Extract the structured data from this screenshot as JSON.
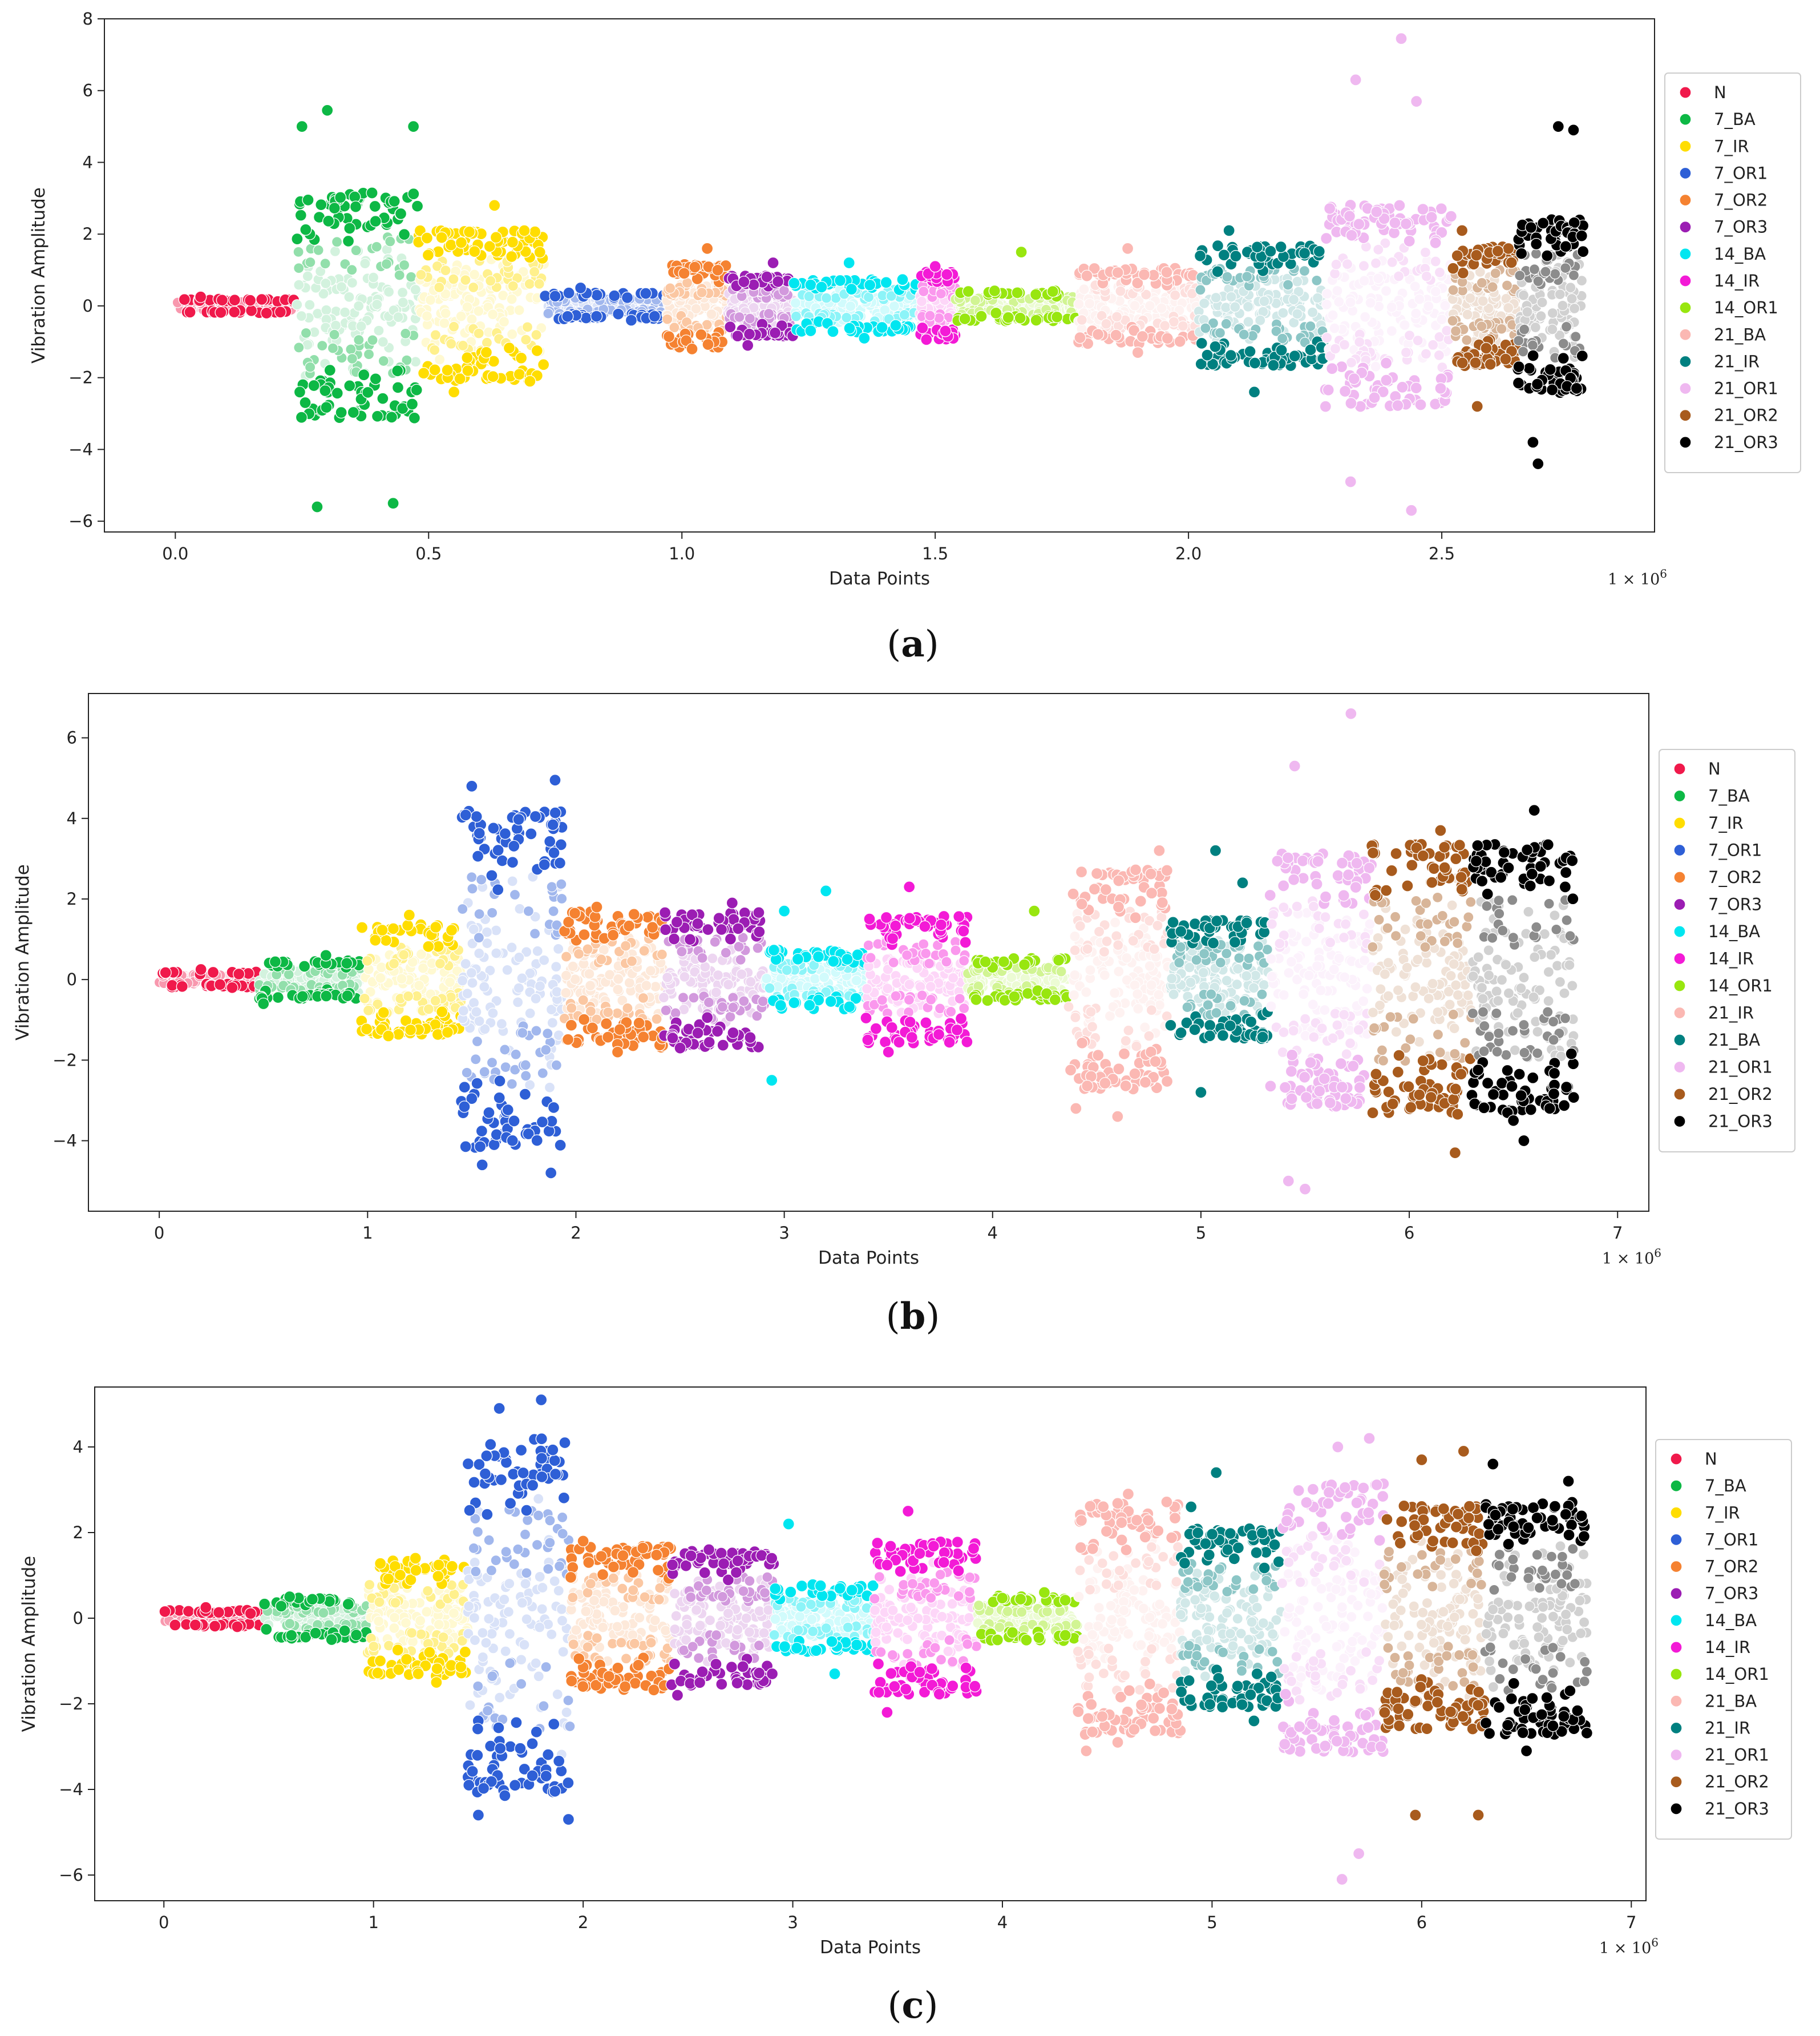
{
  "chart_data": [
    {
      "type": "scatter",
      "caption": "(a)",
      "caption_open": "(",
      "caption_letter": "a",
      "caption_close": ")",
      "xlabel": "Data Points",
      "ylabel": "Vibration Amplitude",
      "x_multiplier": "1 × 10",
      "x_multiplier_exp": "6",
      "x_scale": 1000000,
      "xlim": [
        -0.14,
        2.92
      ],
      "ylim": [
        -6.3,
        8.0
      ],
      "xticks": [
        0.0,
        0.5,
        1.0,
        1.5,
        2.0,
        2.5
      ],
      "xtick_labels": [
        "0.0",
        "0.5",
        "1.0",
        "1.5",
        "2.0",
        "2.5"
      ],
      "yticks": [
        -6,
        -4,
        -2,
        0,
        2,
        4,
        6,
        8
      ],
      "ytick_labels": [
        "−6",
        "−4",
        "−2",
        "0",
        "2",
        "4",
        "6",
        "8"
      ],
      "legend_position": "right",
      "series": [
        {
          "name": "N",
          "color": "#f0194b",
          "x_range": [
            0.0,
            0.24
          ],
          "spread": 0.18,
          "extremes": [
            [
              0.05,
              0.25
            ],
            [
              0.18,
              -0.2
            ]
          ]
        },
        {
          "name": "7_BA",
          "color": "#0db845",
          "x_range": [
            0.24,
            0.48
          ],
          "spread": 3.0,
          "extremes": [
            [
              0.3,
              5.45
            ],
            [
              0.28,
              -5.6
            ],
            [
              0.43,
              -5.5
            ],
            [
              0.25,
              5.0
            ],
            [
              0.47,
              5.0
            ]
          ]
        },
        {
          "name": "7_IR",
          "color": "#ffdd00",
          "x_range": [
            0.48,
            0.73
          ],
          "spread": 2.0,
          "extremes": [
            [
              0.63,
              2.8
            ],
            [
              0.55,
              -2.4
            ],
            [
              0.7,
              -2.1
            ]
          ]
        },
        {
          "name": "7_OR1",
          "color": "#2e5fd6",
          "x_range": [
            0.73,
            0.97
          ],
          "spread": 0.35,
          "extremes": [
            [
              0.8,
              0.5
            ],
            [
              0.9,
              -0.4
            ]
          ]
        },
        {
          "name": "7_OR2",
          "color": "#f58231",
          "x_range": [
            0.97,
            1.09
          ],
          "spread": 1.1,
          "extremes": [
            [
              1.05,
              1.6
            ],
            [
              1.02,
              -1.2
            ]
          ]
        },
        {
          "name": "7_OR3",
          "color": "#9b1db3",
          "x_range": [
            1.09,
            1.22
          ],
          "spread": 0.8,
          "extremes": [
            [
              1.18,
              1.2
            ],
            [
              1.13,
              -1.1
            ]
          ]
        },
        {
          "name": "14_BA",
          "color": "#00e6f0",
          "x_range": [
            1.22,
            1.47
          ],
          "spread": 0.7,
          "extremes": [
            [
              1.33,
              1.2
            ],
            [
              1.36,
              -0.9
            ]
          ]
        },
        {
          "name": "14_IR",
          "color": "#f31ad6",
          "x_range": [
            1.47,
            1.54
          ],
          "spread": 0.9,
          "extremes": [
            [
              1.5,
              1.1
            ],
            [
              1.52,
              -0.7
            ]
          ]
        },
        {
          "name": "14_OR1",
          "color": "#98e60f",
          "x_range": [
            1.54,
            1.78
          ],
          "spread": 0.4,
          "extremes": [
            [
              1.67,
              1.5
            ],
            [
              1.62,
              -0.2
            ]
          ]
        },
        {
          "name": "21_BA",
          "color": "#fbb8b3",
          "x_range": [
            1.78,
            2.02
          ],
          "spread": 1.0,
          "extremes": [
            [
              1.88,
              1.6
            ],
            [
              1.9,
              -1.3
            ]
          ]
        },
        {
          "name": "21_IR",
          "color": "#008080",
          "x_range": [
            2.02,
            2.27
          ],
          "spread": 1.6,
          "extremes": [
            [
              2.08,
              2.1
            ],
            [
              2.13,
              -2.4
            ]
          ]
        },
        {
          "name": "21_OR1",
          "color": "#efb8f0",
          "x_range": [
            2.27,
            2.52
          ],
          "spread": 2.7,
          "extremes": [
            [
              2.42,
              7.45
            ],
            [
              2.33,
              6.3
            ],
            [
              2.44,
              -5.7
            ],
            [
              2.32,
              -4.9
            ],
            [
              2.45,
              5.7
            ]
          ]
        },
        {
          "name": "21_OR2",
          "color": "#a85b1d",
          "x_range": [
            2.52,
            2.65
          ],
          "spread": 1.6,
          "extremes": [
            [
              2.54,
              2.1
            ],
            [
              2.57,
              -2.8
            ]
          ]
        },
        {
          "name": "21_OR3",
          "color": "#000000",
          "x_range": [
            2.65,
            2.78
          ],
          "spread": 2.3,
          "extremes": [
            [
              2.73,
              5.0
            ],
            [
              2.76,
              4.9
            ],
            [
              2.69,
              -4.4
            ],
            [
              2.68,
              -3.8
            ]
          ]
        }
      ]
    },
    {
      "type": "scatter",
      "caption": "(b)",
      "caption_open": "(",
      "caption_letter": "b",
      "caption_close": ")",
      "xlabel": "Data Points",
      "ylabel": "Vibration Amplitude",
      "x_multiplier": "1 × 10",
      "x_multiplier_exp": "6",
      "x_scale": 1000000,
      "xlim": [
        -0.34,
        7.15
      ],
      "ylim": [
        -5.75,
        7.1
      ],
      "xticks": [
        0,
        1,
        2,
        3,
        4,
        5,
        6,
        7
      ],
      "xtick_labels": [
        "0",
        "1",
        "2",
        "3",
        "4",
        "5",
        "6",
        "7"
      ],
      "yticks": [
        -4,
        -2,
        0,
        2,
        4,
        6
      ],
      "ytick_labels": [
        "−4",
        "−2",
        "0",
        "2",
        "4",
        "6"
      ],
      "legend_position": "right",
      "series": [
        {
          "name": "N",
          "color": "#f0194b",
          "x_range": [
            0.0,
            0.48
          ],
          "spread": 0.18,
          "extremes": [
            [
              0.2,
              0.25
            ],
            [
              0.35,
              -0.2
            ]
          ]
        },
        {
          "name": "7_BA",
          "color": "#0db845",
          "x_range": [
            0.48,
            0.97
          ],
          "spread": 0.45,
          "extremes": [
            [
              0.5,
              -0.6
            ],
            [
              0.8,
              0.6
            ]
          ]
        },
        {
          "name": "7_IR",
          "color": "#ffdd00",
          "x_range": [
            0.97,
            1.45
          ],
          "spread": 1.3,
          "extremes": [
            [
              1.2,
              1.6
            ],
            [
              1.1,
              -1.4
            ]
          ]
        },
        {
          "name": "7_OR1",
          "color": "#2e5fd6",
          "x_range": [
            1.45,
            1.94
          ],
          "spread": 4.0,
          "extremes": [
            [
              1.9,
              4.95
            ],
            [
              1.88,
              -4.8
            ],
            [
              1.5,
              4.8
            ],
            [
              1.55,
              -4.6
            ]
          ]
        },
        {
          "name": "7_OR2",
          "color": "#f58231",
          "x_range": [
            1.94,
            2.42
          ],
          "spread": 1.6,
          "extremes": [
            [
              2.1,
              1.8
            ],
            [
              2.2,
              -1.8
            ]
          ]
        },
        {
          "name": "7_OR3",
          "color": "#9b1db3",
          "x_range": [
            2.42,
            2.91
          ],
          "spread": 1.6,
          "extremes": [
            [
              2.75,
              1.9
            ],
            [
              2.5,
              -1.7
            ]
          ]
        },
        {
          "name": "14_BA",
          "color": "#00e6f0",
          "x_range": [
            2.91,
            3.39
          ],
          "spread": 0.7,
          "extremes": [
            [
              3.2,
              2.2
            ],
            [
              2.94,
              -2.5
            ],
            [
              3.0,
              1.7
            ]
          ]
        },
        {
          "name": "14_IR",
          "color": "#f31ad6",
          "x_range": [
            3.39,
            3.88
          ],
          "spread": 1.5,
          "extremes": [
            [
              3.6,
              2.3
            ],
            [
              3.5,
              -1.8
            ]
          ]
        },
        {
          "name": "14_OR1",
          "color": "#98e60f",
          "x_range": [
            3.88,
            4.36
          ],
          "spread": 0.5,
          "extremes": [
            [
              4.2,
              1.7
            ],
            [
              4.3,
              -0.5
            ]
          ]
        },
        {
          "name": "21_IR",
          "color": "#fbb8b3",
          "x_range": [
            4.36,
            4.85
          ],
          "spread": 2.6,
          "extremes": [
            [
              4.4,
              -3.2
            ],
            [
              4.6,
              -3.4
            ],
            [
              4.8,
              3.2
            ]
          ]
        },
        {
          "name": "21_BA",
          "color": "#008080",
          "x_range": [
            4.85,
            5.33
          ],
          "spread": 1.4,
          "extremes": [
            [
              5.07,
              3.2
            ],
            [
              5.0,
              -2.8
            ],
            [
              5.2,
              2.4
            ]
          ]
        },
        {
          "name": "21_OR1",
          "color": "#efb8f0",
          "x_range": [
            5.33,
            5.82
          ],
          "spread": 3.0,
          "extremes": [
            [
              5.72,
              6.6
            ],
            [
              5.45,
              5.3
            ],
            [
              5.5,
              -5.2
            ],
            [
              5.42,
              -5.0
            ]
          ]
        },
        {
          "name": "21_OR2",
          "color": "#a85b1d",
          "x_range": [
            5.82,
            6.3
          ],
          "spread": 3.2,
          "extremes": [
            [
              6.15,
              3.7
            ],
            [
              6.22,
              -4.3
            ]
          ]
        },
        {
          "name": "21_OR3",
          "color": "#000000",
          "x_range": [
            6.3,
            6.79
          ],
          "spread": 3.2,
          "extremes": [
            [
              6.6,
              4.2
            ],
            [
              6.55,
              -4.0
            ],
            [
              6.5,
              -3.5
            ]
          ]
        }
      ]
    },
    {
      "type": "scatter",
      "caption": "(c)",
      "caption_open": "(",
      "caption_letter": "c",
      "caption_close": ")",
      "xlabel": "Data Points",
      "ylabel": "Vibration Amplitude",
      "x_multiplier": "1 × 10",
      "x_multiplier_exp": "6",
      "x_scale": 1000000,
      "xlim": [
        -0.33,
        7.07
      ],
      "ylim": [
        -6.6,
        5.4
      ],
      "xticks": [
        0,
        1,
        2,
        3,
        4,
        5,
        6,
        7
      ],
      "xtick_labels": [
        "0",
        "1",
        "2",
        "3",
        "4",
        "5",
        "6",
        "7"
      ],
      "yticks": [
        -6,
        -4,
        -2,
        0,
        2,
        4
      ],
      "ytick_labels": [
        "−6",
        "−4",
        "−2",
        "0",
        "2",
        "4"
      ],
      "legend_position": "right",
      "series": [
        {
          "name": "N",
          "color": "#f0194b",
          "x_range": [
            0.0,
            0.48
          ],
          "spread": 0.18,
          "extremes": [
            [
              0.2,
              0.25
            ],
            [
              0.35,
              -0.2
            ]
          ]
        },
        {
          "name": "7_BA",
          "color": "#0db845",
          "x_range": [
            0.48,
            0.97
          ],
          "spread": 0.45,
          "extremes": [
            [
              0.6,
              0.5
            ],
            [
              0.8,
              -0.5
            ]
          ]
        },
        {
          "name": "7_IR",
          "color": "#ffdd00",
          "x_range": [
            0.97,
            1.45
          ],
          "spread": 1.3,
          "extremes": [
            [
              1.2,
              1.4
            ],
            [
              1.3,
              -1.5
            ]
          ]
        },
        {
          "name": "7_OR1",
          "color": "#2e5fd6",
          "x_range": [
            1.45,
            1.94
          ],
          "spread": 4.0,
          "extremes": [
            [
              1.8,
              5.1
            ],
            [
              1.93,
              -4.7
            ],
            [
              1.5,
              -4.6
            ],
            [
              1.6,
              4.9
            ]
          ]
        },
        {
          "name": "7_OR2",
          "color": "#f58231",
          "x_range": [
            1.94,
            2.42
          ],
          "spread": 1.6,
          "extremes": [
            [
              2.0,
              1.8
            ],
            [
              2.2,
              -1.6
            ]
          ]
        },
        {
          "name": "7_OR3",
          "color": "#9b1db3",
          "x_range": [
            2.42,
            2.91
          ],
          "spread": 1.5,
          "extremes": [
            [
              2.6,
              1.6
            ],
            [
              2.45,
              -1.8
            ]
          ]
        },
        {
          "name": "14_BA",
          "color": "#00e6f0",
          "x_range": [
            2.91,
            3.39
          ],
          "spread": 0.75,
          "extremes": [
            [
              2.98,
              2.2
            ],
            [
              3.2,
              -1.3
            ]
          ]
        },
        {
          "name": "14_IR",
          "color": "#f31ad6",
          "x_range": [
            3.39,
            3.88
          ],
          "spread": 1.7,
          "extremes": [
            [
              3.55,
              2.5
            ],
            [
              3.45,
              -2.2
            ]
          ]
        },
        {
          "name": "14_OR1",
          "color": "#98e60f",
          "x_range": [
            3.88,
            4.36
          ],
          "spread": 0.5,
          "extremes": [
            [
              4.2,
              0.6
            ],
            [
              4.3,
              -0.4
            ]
          ]
        },
        {
          "name": "21_BA",
          "color": "#fbb8b3",
          "x_range": [
            4.36,
            4.85
          ],
          "spread": 2.6,
          "extremes": [
            [
              4.4,
              -3.1
            ],
            [
              4.6,
              2.9
            ],
            [
              4.55,
              -2.9
            ]
          ]
        },
        {
          "name": "21_IR",
          "color": "#008080",
          "x_range": [
            4.85,
            5.33
          ],
          "spread": 2.0,
          "extremes": [
            [
              5.02,
              3.4
            ],
            [
              5.2,
              -2.4
            ],
            [
              4.9,
              2.6
            ]
          ]
        },
        {
          "name": "21_OR1",
          "color": "#efb8f0",
          "x_range": [
            5.33,
            5.82
          ],
          "spread": 3.0,
          "extremes": [
            [
              5.62,
              -6.1
            ],
            [
              5.7,
              -5.5
            ],
            [
              5.75,
              4.2
            ],
            [
              5.6,
              4.0
            ]
          ]
        },
        {
          "name": "21_OR2",
          "color": "#a85b1d",
          "x_range": [
            5.82,
            6.3
          ],
          "spread": 2.5,
          "extremes": [
            [
              6.0,
              3.7
            ],
            [
              6.2,
              3.9
            ],
            [
              5.97,
              -4.6
            ],
            [
              6.27,
              -4.6
            ]
          ]
        },
        {
          "name": "21_OR3",
          "color": "#000000",
          "x_range": [
            6.3,
            6.79
          ],
          "spread": 2.6,
          "extremes": [
            [
              6.34,
              3.6
            ],
            [
              6.7,
              3.2
            ],
            [
              6.5,
              -3.1
            ]
          ]
        }
      ]
    }
  ]
}
